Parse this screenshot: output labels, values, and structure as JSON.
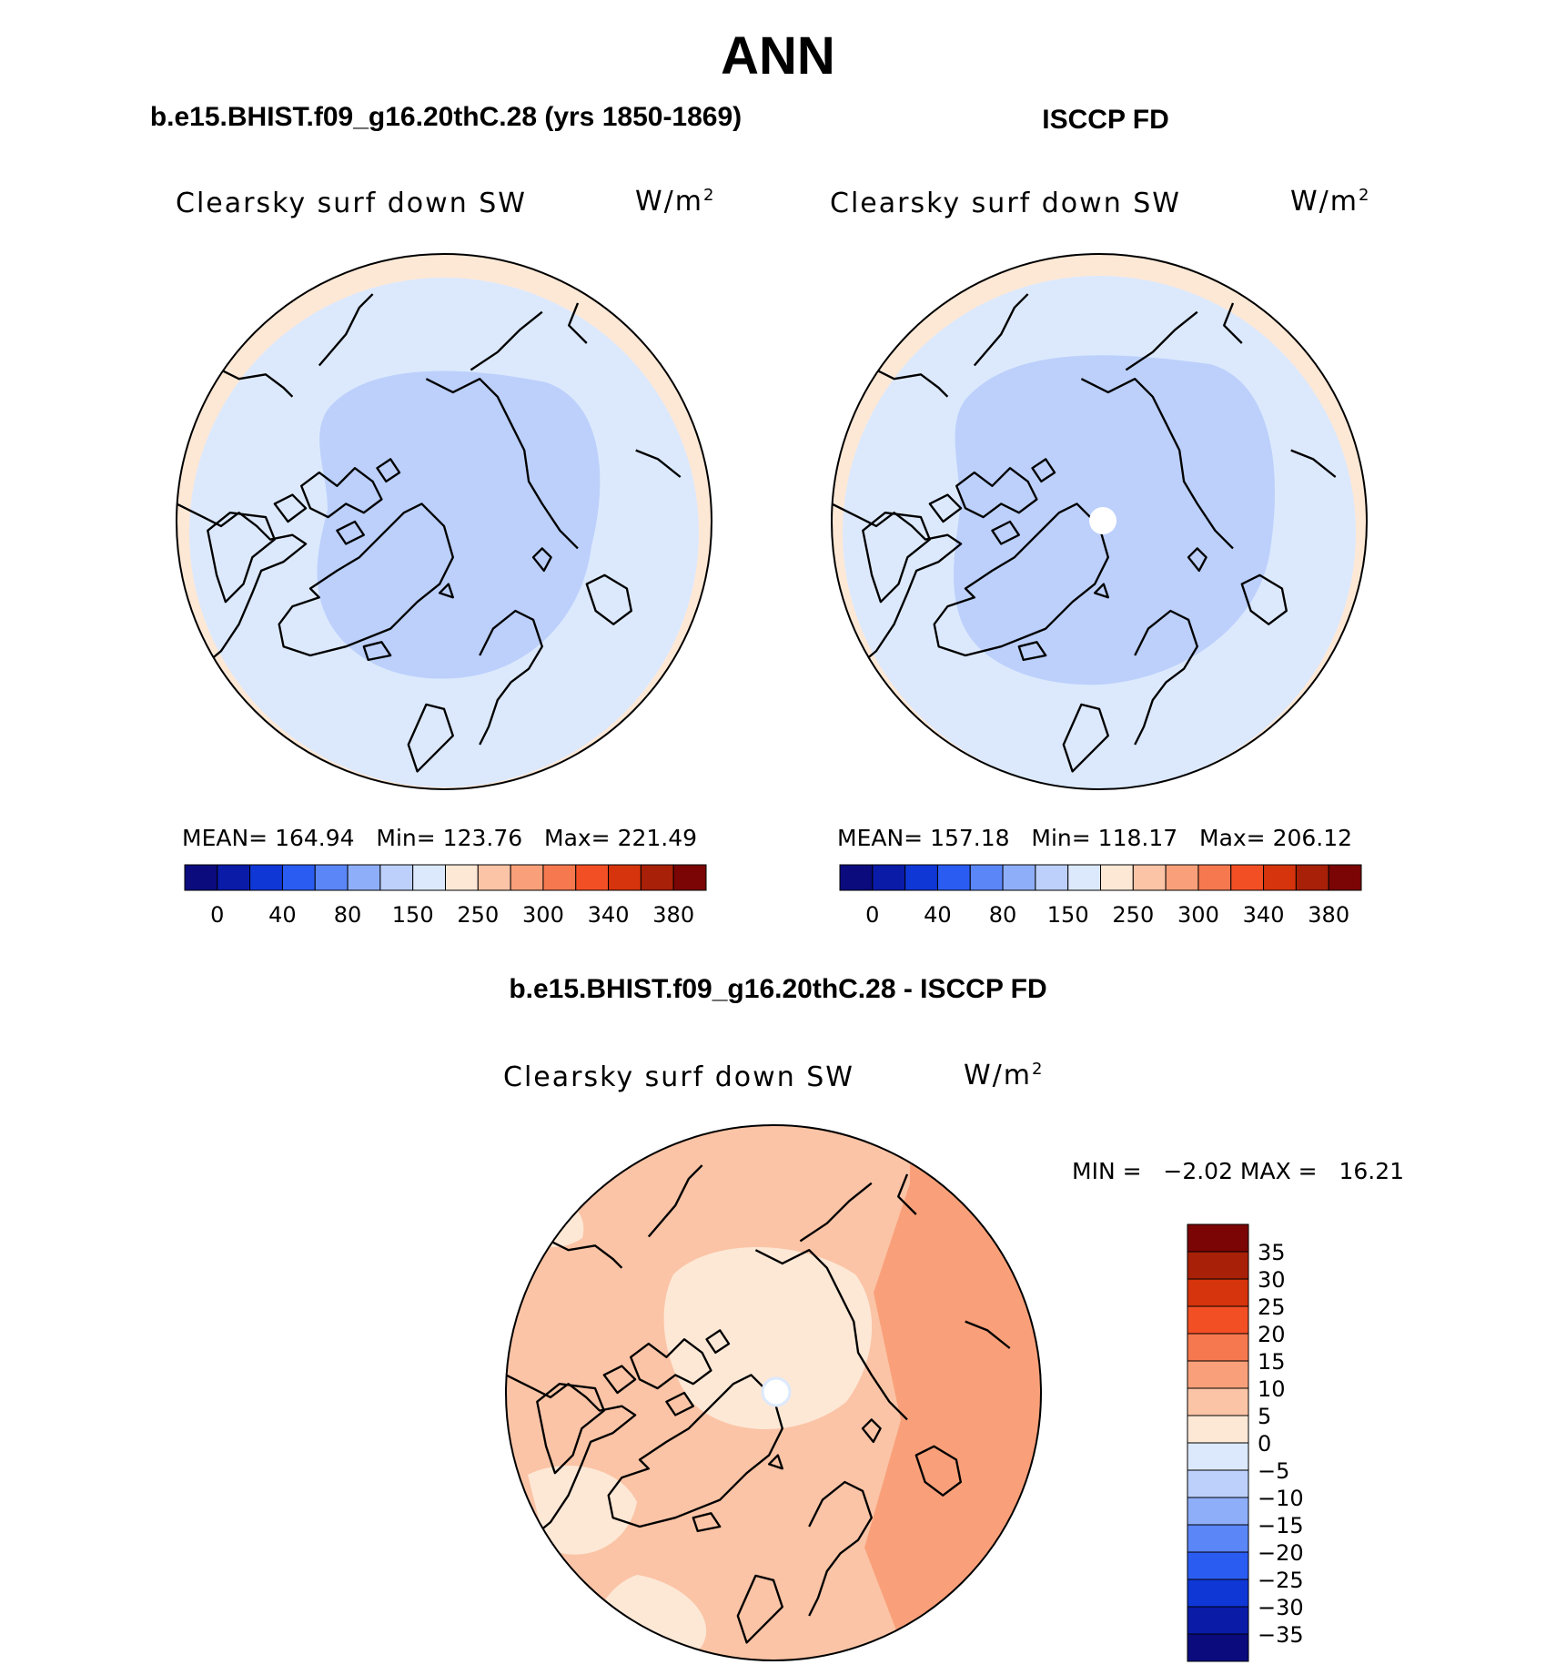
{
  "title": "ANN",
  "panels": {
    "model": {
      "subtitle": "b.e15.BHIST.f09_g16.20thC.28 (yrs 1850-1869)",
      "field": "Clearsky surf down SW",
      "units_base": "W/m",
      "units_sup": "2",
      "mean_label": "MEAN=",
      "mean": "164.94",
      "min_label": "Min=",
      "min": "123.76",
      "max_label": "Max=",
      "max": "221.49"
    },
    "obs": {
      "subtitle": "ISCCP FD",
      "field": "Clearsky surf down SW",
      "units_base": "W/m",
      "units_sup": "2",
      "mean_label": "MEAN=",
      "mean": "157.18",
      "min_label": "Min=",
      "min": "118.17",
      "max_label": "Max=",
      "max": "206.12"
    },
    "diff": {
      "subtitle": "b.e15.BHIST.f09_g16.20thC.28 - ISCCP FD",
      "field": "Clearsky surf down SW",
      "units_base": "W/m",
      "units_sup": "2",
      "minmax_text": "MIN =   −2.02 MAX =   16.21"
    }
  },
  "colorbar_horizontal": {
    "colors": [
      "#0b0b7e",
      "#0a1ba8",
      "#0f37d6",
      "#2b5cf2",
      "#5a86f7",
      "#8eaef9",
      "#bcd0fb",
      "#dce9fd",
      "#fde8d6",
      "#fbc4a6",
      "#f9a07a",
      "#f6784e",
      "#f34f25",
      "#d6340c",
      "#a82007",
      "#7b0505"
    ],
    "labels": [
      "0",
      "40",
      "80",
      "150",
      "250",
      "300",
      "340",
      "380"
    ]
  },
  "colorbar_vertical": {
    "colors": [
      "#7b0505",
      "#a82007",
      "#d6340c",
      "#f34f25",
      "#f6784e",
      "#f9a07a",
      "#fbc4a6",
      "#fde8d6",
      "#dce9fd",
      "#bcd0fb",
      "#8eaef9",
      "#5a86f7",
      "#2b5cf2",
      "#0f37d6",
      "#0a1ba8",
      "#0b0b7e"
    ],
    "labels": [
      "35",
      "30",
      "25",
      "20",
      "15",
      "10",
      "5",
      "0",
      "−5",
      "−10",
      "−15",
      "−20",
      "−25",
      "−30",
      "−35"
    ]
  },
  "map_colors": {
    "bg_light": "#dce9fd",
    "bg_mid": "#bcd0fb",
    "edge_warm": "#fde8d6",
    "diff_base": "#fbc4a6",
    "diff_light": "#fde8d6",
    "diff_strong": "#f9a07a"
  }
}
